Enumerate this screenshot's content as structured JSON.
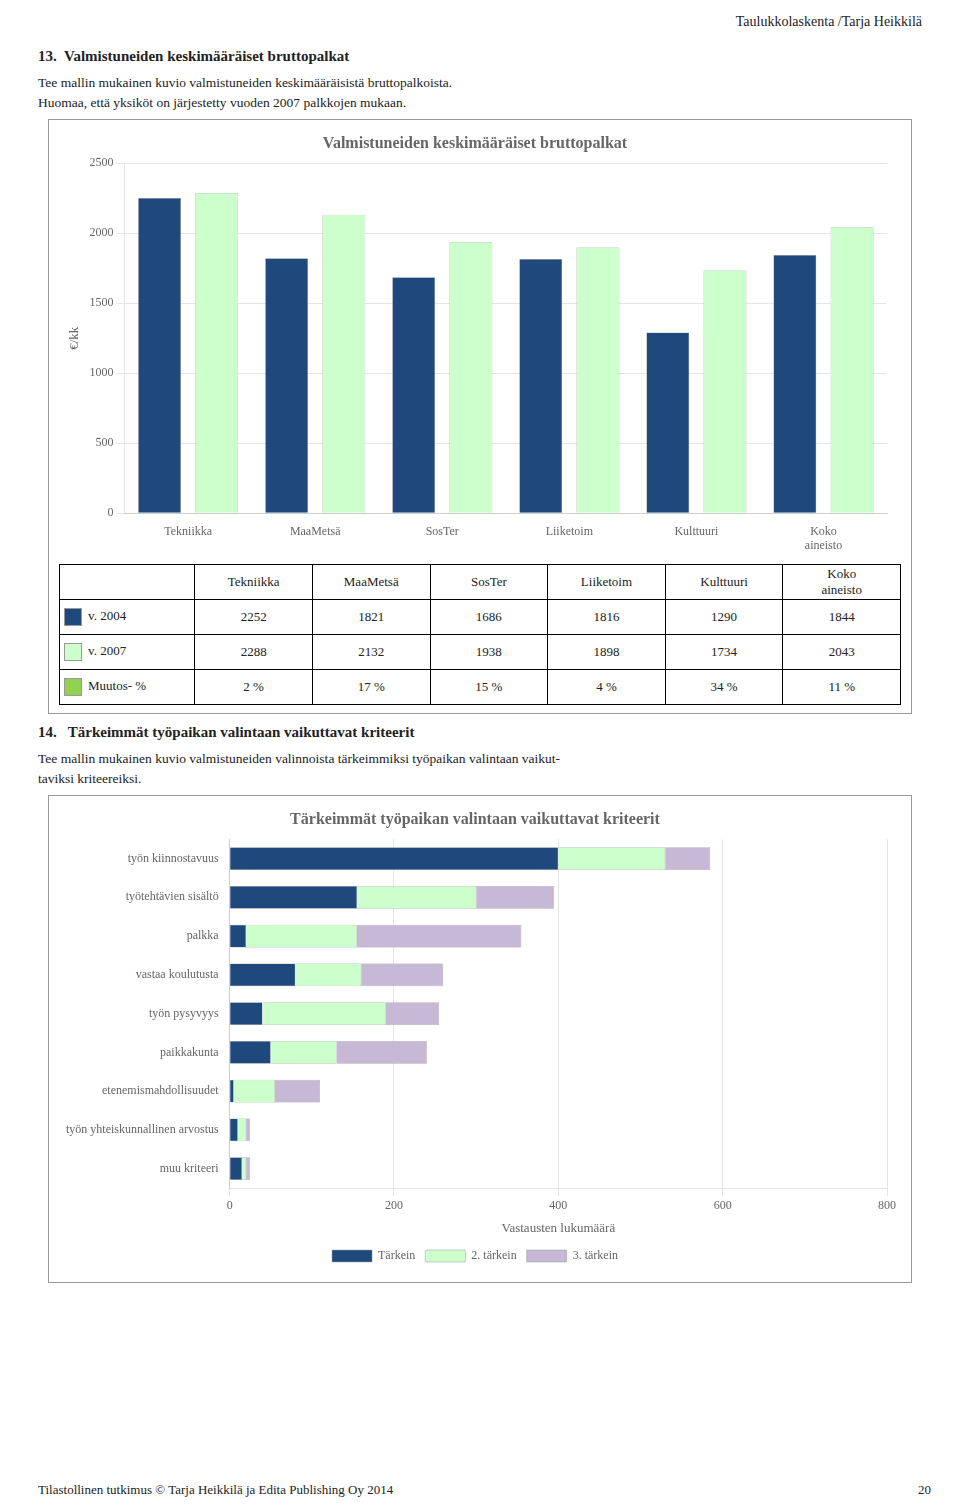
{
  "page_title": "Taulukkolaskenta /Tarja Heikkilä",
  "sections": [
    {
      "heading": "13.  Valmistuneiden keskimääräiset bruttopalkat",
      "text": [
        "Tee mallin mukainen kuvio valmistuneiden keskimääräisistä bruttopalkoista.",
        "Huomaa, että yksiköt on järjestetty vuoden 2007 palkkojen mukaan."
      ]
    },
    {
      "heading": "14.   Tärkeimmät työpaikan valintaan vaikuttavat kriteerit",
      "text": [
        "Tee mallin mukainen kuvio valmistuneiden valinnoista tärkeimmiksi työpaikan valintaan vaikut-",
        "taviksi kriteereiksi."
      ]
    }
  ],
  "chart_data": [
    {
      "type": "bar",
      "title": "Valmistuneiden keskimääräiset bruttopalkat",
      "ylabel": "€/kk",
      "categories": [
        "Tekniikka",
        "MaaMetsä",
        "SosTer",
        "Liiketoim",
        "Kulttuuri",
        "Koko\naineisto"
      ],
      "series": [
        {
          "name": "v. 2004",
          "color": "#1F497D",
          "values": [
            2252,
            1821,
            1686,
            1816,
            1290,
            1844
          ]
        },
        {
          "name": "v. 2007",
          "color": "#CCFFCC",
          "values": [
            2288,
            2132,
            1938,
            1898,
            1734,
            2043
          ]
        },
        {
          "name": "Muutos- %",
          "type": "table",
          "color": "#92D050",
          "values": [
            2,
            17,
            15,
            4,
            34,
            11
          ],
          "value_labels": [
            "2 %",
            "17 %",
            "15 %",
            "4 %",
            "34 %",
            "11 %"
          ]
        }
      ],
      "ylim": [
        0,
        2500
      ],
      "yticks": [
        0,
        500,
        1000,
        1500,
        2000,
        2500
      ],
      "grid": true
    },
    {
      "type": "bar",
      "orientation": "horizontal",
      "stacked": true,
      "title": "Tärkeimmät työpaikan valintaan vaikuttavat kriteerit",
      "xlabel": "Vastausten lukumäärä",
      "categories": [
        "työn kiinnostavuus",
        "työtehtävien sisältö",
        "palkka",
        "vastaa koulutusta",
        "työn pysyvyys",
        "paikkakunta",
        "etenemismahdollisuudet",
        "työn yhteiskunnallinen arvostus",
        "muu kriteeri"
      ],
      "series": [
        {
          "name": "Tärkein",
          "color": "#1F497D",
          "values": [
            400,
            155,
            20,
            80,
            40,
            50,
            5,
            10,
            15
          ]
        },
        {
          "name": "2. tärkein",
          "color": "#CCFFCC",
          "values": [
            130,
            145,
            135,
            80,
            150,
            80,
            50,
            10,
            5
          ]
        },
        {
          "name": "3. tärkein",
          "color": "#C7B8D6",
          "values": [
            55,
            95,
            200,
            100,
            65,
            110,
            55,
            5,
            5
          ]
        }
      ],
      "xlim": [
        0,
        800
      ],
      "xticks": [
        0,
        200,
        400,
        600,
        800
      ],
      "grid": true,
      "legend": "bottom"
    }
  ],
  "footer": "Tilastollinen tutkimus © Tarja Heikkilä ja Edita Publishing Oy 2014",
  "page_number": "20"
}
